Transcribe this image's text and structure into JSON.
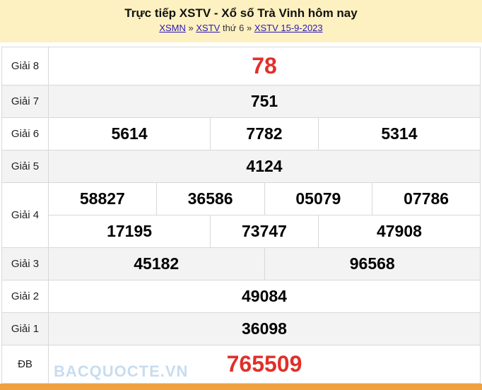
{
  "header": {
    "title": "Trực tiếp XSTV - Xổ số Trà Vinh hôm nay",
    "crumb1": "XSMN",
    "sep1": " » ",
    "crumb2": "XSTV",
    "day": " thứ 6 ",
    "sep2": "» ",
    "crumb3": "XSTV 15-9-2023"
  },
  "prizes": {
    "g8": {
      "label": "Giải 8",
      "nums": [
        "78"
      ]
    },
    "g7": {
      "label": "Giải 7",
      "nums": [
        "751"
      ]
    },
    "g6": {
      "label": "Giải 6",
      "nums": [
        "5614",
        "7782",
        "5314"
      ]
    },
    "g5": {
      "label": "Giải 5",
      "nums": [
        "4124"
      ]
    },
    "g4": {
      "label": "Giải 4",
      "nums": [
        "58827",
        "36586",
        "05079",
        "07786",
        "17195",
        "73747",
        "47908"
      ]
    },
    "g3": {
      "label": "Giải 3",
      "nums": [
        "45182",
        "96568"
      ]
    },
    "g2": {
      "label": "Giải 2",
      "nums": [
        "49084"
      ]
    },
    "g1": {
      "label": "Giải 1",
      "nums": [
        "36098"
      ]
    },
    "db": {
      "label": "ĐB",
      "nums": [
        "765509"
      ]
    }
  },
  "watermark": "BACQUOCTE.VN",
  "colors": {
    "header_bg": "#fdf1c1",
    "highlight": "#e0302a",
    "footer_bar": "#f0a040"
  }
}
